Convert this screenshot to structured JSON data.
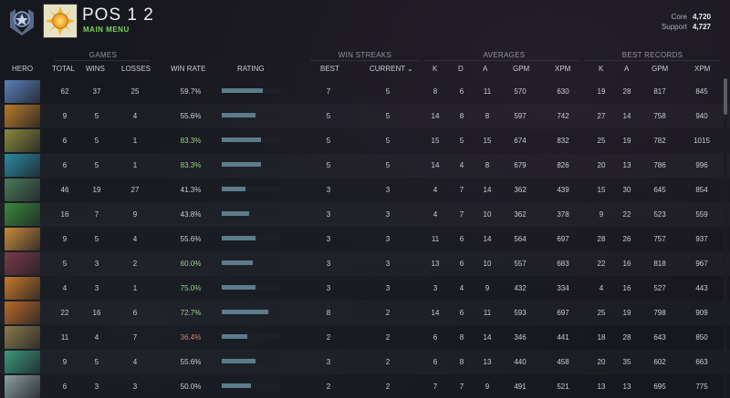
{
  "header": {
    "title": "POS 1 2",
    "subtitle": "MAIN MENU",
    "mmr": [
      {
        "label": "Core",
        "value": "4,720"
      },
      {
        "label": "Support",
        "value": "4,727"
      }
    ]
  },
  "groups": {
    "games": "GAMES",
    "win_streaks": "WIN STREAKS",
    "averages": "AVERAGES",
    "best_records": "BEST RECORDS"
  },
  "columns": {
    "hero": "HERO",
    "total": "TOTAL",
    "wins": "WINS",
    "losses": "LOSSES",
    "win_rate": "WIN RATE",
    "rating": "RATING",
    "best": "BEST",
    "current": "CURRENT",
    "avg_k": "K",
    "avg_d": "D",
    "avg_a": "A",
    "avg_gpm": "GPM",
    "avg_xpm": "XPM",
    "rec_k": "K",
    "rec_a": "A",
    "rec_gpm": "GPM",
    "rec_xpm": "XPM"
  },
  "colors": {
    "win_rate_high": "#9ad282",
    "win_rate_low": "#d2866a",
    "rating_bar": "#5c7c8c",
    "accent_green": "#7cd35f"
  },
  "rows": [
    {
      "portrait": "#5a7fb8",
      "total": "62",
      "wins": "37",
      "losses": "25",
      "win_rate": "59.7%",
      "wr_class": "",
      "rating": 0.7,
      "best": "7",
      "current": "5",
      "k": "8",
      "d": "6",
      "a": "11",
      "gpm": "570",
      "xpm": "630",
      "rk": "19",
      "ra": "28",
      "rgpm": "817",
      "rxpm": "845"
    },
    {
      "portrait": "#b87a2a",
      "total": "9",
      "wins": "5",
      "losses": "4",
      "win_rate": "55.6%",
      "wr_class": "",
      "rating": 0.58,
      "best": "5",
      "current": "5",
      "k": "14",
      "d": "8",
      "a": "8",
      "gpm": "597",
      "xpm": "742",
      "rk": "27",
      "ra": "14",
      "rgpm": "758",
      "rxpm": "940"
    },
    {
      "portrait": "#8a8a3a",
      "total": "6",
      "wins": "5",
      "losses": "1",
      "win_rate": "83.3%",
      "wr_class": "high",
      "rating": 0.67,
      "best": "5",
      "current": "5",
      "k": "15",
      "d": "5",
      "a": "15",
      "gpm": "674",
      "xpm": "832",
      "rk": "25",
      "ra": "19",
      "rgpm": "782",
      "rxpm": "1015"
    },
    {
      "portrait": "#2a8aa0",
      "total": "6",
      "wins": "5",
      "losses": "1",
      "win_rate": "83.3%",
      "wr_class": "high",
      "rating": 0.67,
      "best": "5",
      "current": "5",
      "k": "14",
      "d": "4",
      "a": "8",
      "gpm": "679",
      "xpm": "826",
      "rk": "20",
      "ra": "13",
      "rgpm": "786",
      "rxpm": "996"
    },
    {
      "portrait": "#4a7a5a",
      "total": "46",
      "wins": "19",
      "losses": "27",
      "win_rate": "41.3%",
      "wr_class": "",
      "rating": 0.41,
      "best": "3",
      "current": "3",
      "k": "4",
      "d": "7",
      "a": "14",
      "gpm": "362",
      "xpm": "439",
      "rk": "15",
      "ra": "30",
      "rgpm": "645",
      "rxpm": "854"
    },
    {
      "portrait": "#3a8a3a",
      "total": "16",
      "wins": "7",
      "losses": "9",
      "win_rate": "43.8%",
      "wr_class": "",
      "rating": 0.47,
      "best": "3",
      "current": "3",
      "k": "4",
      "d": "7",
      "a": "10",
      "gpm": "362",
      "xpm": "378",
      "rk": "9",
      "ra": "22",
      "rgpm": "523",
      "rxpm": "559"
    },
    {
      "portrait": "#c88a3a",
      "total": "9",
      "wins": "5",
      "losses": "4",
      "win_rate": "55.6%",
      "wr_class": "",
      "rating": 0.58,
      "best": "3",
      "current": "3",
      "k": "11",
      "d": "6",
      "a": "14",
      "gpm": "564",
      "xpm": "697",
      "rk": "28",
      "ra": "26",
      "rgpm": "757",
      "rxpm": "937"
    },
    {
      "portrait": "#7a3a4a",
      "total": "5",
      "wins": "3",
      "losses": "2",
      "win_rate": "60.0%",
      "wr_class": "high",
      "rating": 0.53,
      "best": "3",
      "current": "3",
      "k": "13",
      "d": "6",
      "a": "10",
      "gpm": "557",
      "xpm": "683",
      "rk": "22",
      "ra": "16",
      "rgpm": "818",
      "rxpm": "967"
    },
    {
      "portrait": "#c8782a",
      "total": "4",
      "wins": "3",
      "losses": "1",
      "win_rate": "75.0%",
      "wr_class": "high",
      "rating": 0.58,
      "best": "3",
      "current": "3",
      "k": "3",
      "d": "4",
      "a": "9",
      "gpm": "432",
      "xpm": "334",
      "rk": "4",
      "ra": "16",
      "rgpm": "527",
      "rxpm": "443"
    },
    {
      "portrait": "#b86a2a",
      "total": "22",
      "wins": "16",
      "losses": "6",
      "win_rate": "72.7%",
      "wr_class": "high",
      "rating": 0.8,
      "best": "8",
      "current": "2",
      "k": "14",
      "d": "6",
      "a": "11",
      "gpm": "593",
      "xpm": "697",
      "rk": "25",
      "ra": "19",
      "rgpm": "798",
      "rxpm": "909"
    },
    {
      "portrait": "#8a7a4a",
      "total": "11",
      "wins": "4",
      "losses": "7",
      "win_rate": "36.4%",
      "wr_class": "low",
      "rating": 0.44,
      "best": "2",
      "current": "2",
      "k": "6",
      "d": "8",
      "a": "14",
      "gpm": "346",
      "xpm": "441",
      "rk": "18",
      "ra": "28",
      "rgpm": "643",
      "rxpm": "850"
    },
    {
      "portrait": "#3a9a7a",
      "total": "9",
      "wins": "5",
      "losses": "4",
      "win_rate": "55.6%",
      "wr_class": "",
      "rating": 0.58,
      "best": "3",
      "current": "2",
      "k": "6",
      "d": "8",
      "a": "13",
      "gpm": "440",
      "xpm": "458",
      "rk": "20",
      "ra": "35",
      "rgpm": "602",
      "rxpm": "663"
    },
    {
      "portrait": "#8aa0a0",
      "total": "6",
      "wins": "3",
      "losses": "3",
      "win_rate": "50.0%",
      "wr_class": "",
      "rating": 0.5,
      "best": "2",
      "current": "2",
      "k": "7",
      "d": "7",
      "a": "9",
      "gpm": "491",
      "xpm": "521",
      "rk": "13",
      "ra": "13",
      "rgpm": "695",
      "rxpm": "775"
    }
  ]
}
